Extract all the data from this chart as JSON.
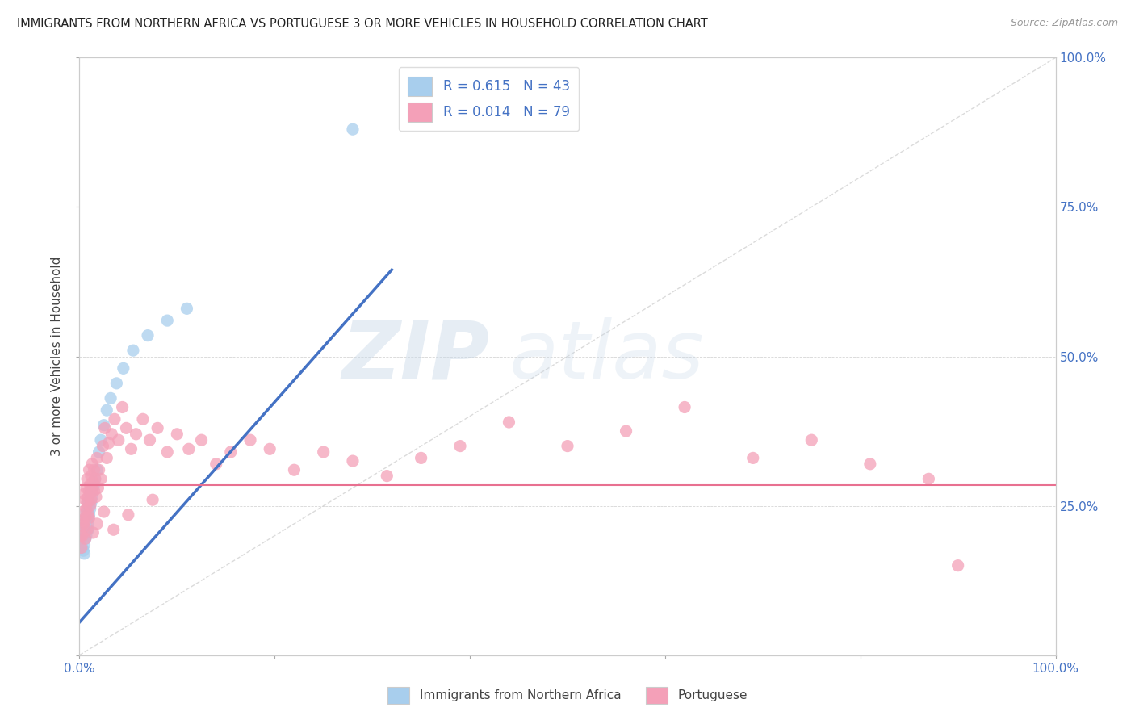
{
  "title": "IMMIGRANTS FROM NORTHERN AFRICA VS PORTUGUESE 3 OR MORE VEHICLES IN HOUSEHOLD CORRELATION CHART",
  "source": "Source: ZipAtlas.com",
  "ylabel": "3 or more Vehicles in Household",
  "xlim": [
    0,
    1.0
  ],
  "ylim": [
    0,
    1.0
  ],
  "color_blue": "#A8CEED",
  "color_pink": "#F4A0B8",
  "color_line_blue": "#4472C4",
  "color_line_pink": "#E87090",
  "color_diag": "#CCCCCC",
  "watermark_zip": "ZIP",
  "watermark_atlas": "atlas",
  "legend_label1_name": "Immigrants from Northern Africa",
  "legend_label2_name": "Portuguese",
  "blue_x": [
    0.002,
    0.003,
    0.003,
    0.004,
    0.004,
    0.005,
    0.005,
    0.005,
    0.006,
    0.006,
    0.006,
    0.007,
    0.007,
    0.007,
    0.008,
    0.008,
    0.008,
    0.009,
    0.009,
    0.009,
    0.01,
    0.01,
    0.011,
    0.011,
    0.012,
    0.012,
    0.013,
    0.014,
    0.015,
    0.016,
    0.018,
    0.02,
    0.022,
    0.025,
    0.028,
    0.032,
    0.038,
    0.045,
    0.055,
    0.07,
    0.09,
    0.11,
    0.28
  ],
  "blue_y": [
    0.195,
    0.18,
    0.21,
    0.175,
    0.2,
    0.185,
    0.17,
    0.215,
    0.195,
    0.21,
    0.23,
    0.2,
    0.225,
    0.24,
    0.21,
    0.23,
    0.255,
    0.22,
    0.24,
    0.21,
    0.235,
    0.255,
    0.245,
    0.27,
    0.255,
    0.275,
    0.265,
    0.28,
    0.285,
    0.295,
    0.31,
    0.34,
    0.36,
    0.385,
    0.41,
    0.43,
    0.455,
    0.48,
    0.51,
    0.535,
    0.56,
    0.58,
    0.88
  ],
  "pink_x": [
    0.002,
    0.003,
    0.004,
    0.005,
    0.005,
    0.006,
    0.006,
    0.007,
    0.007,
    0.008,
    0.008,
    0.009,
    0.009,
    0.01,
    0.01,
    0.011,
    0.011,
    0.012,
    0.012,
    0.013,
    0.013,
    0.014,
    0.015,
    0.015,
    0.016,
    0.017,
    0.018,
    0.019,
    0.02,
    0.022,
    0.024,
    0.026,
    0.028,
    0.03,
    0.033,
    0.036,
    0.04,
    0.044,
    0.048,
    0.053,
    0.058,
    0.065,
    0.072,
    0.08,
    0.09,
    0.1,
    0.112,
    0.125,
    0.14,
    0.155,
    0.175,
    0.195,
    0.22,
    0.25,
    0.28,
    0.315,
    0.35,
    0.39,
    0.44,
    0.5,
    0.56,
    0.62,
    0.69,
    0.75,
    0.81,
    0.87,
    0.002,
    0.003,
    0.004,
    0.006,
    0.008,
    0.01,
    0.014,
    0.018,
    0.025,
    0.035,
    0.05,
    0.075,
    0.9
  ],
  "pink_y": [
    0.2,
    0.225,
    0.24,
    0.215,
    0.27,
    0.23,
    0.26,
    0.245,
    0.28,
    0.255,
    0.295,
    0.265,
    0.235,
    0.275,
    0.31,
    0.25,
    0.285,
    0.26,
    0.3,
    0.275,
    0.32,
    0.29,
    0.275,
    0.31,
    0.295,
    0.265,
    0.33,
    0.28,
    0.31,
    0.295,
    0.35,
    0.38,
    0.33,
    0.355,
    0.37,
    0.395,
    0.36,
    0.415,
    0.38,
    0.345,
    0.37,
    0.395,
    0.36,
    0.38,
    0.34,
    0.37,
    0.345,
    0.36,
    0.32,
    0.34,
    0.36,
    0.345,
    0.31,
    0.34,
    0.325,
    0.3,
    0.33,
    0.35,
    0.39,
    0.35,
    0.375,
    0.415,
    0.33,
    0.36,
    0.32,
    0.295,
    0.18,
    0.2,
    0.22,
    0.195,
    0.21,
    0.23,
    0.205,
    0.22,
    0.24,
    0.21,
    0.235,
    0.26,
    0.15
  ],
  "blue_line_x": [
    0.0,
    0.32
  ],
  "blue_line_y": [
    0.055,
    0.645
  ],
  "pink_line_y": 0.285
}
